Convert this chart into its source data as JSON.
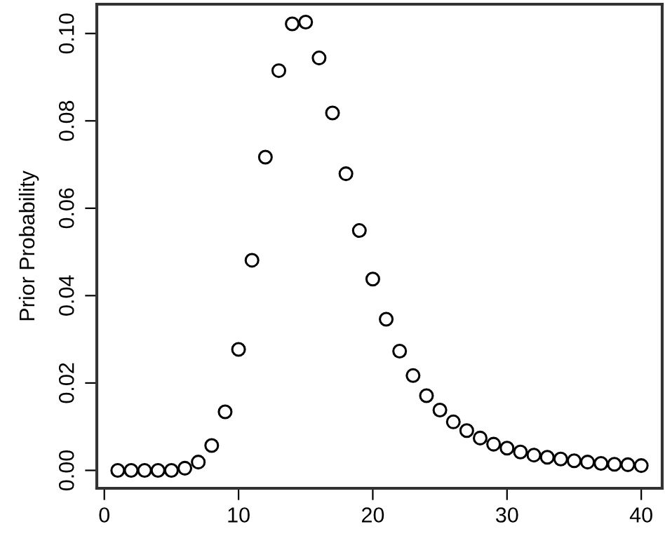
{
  "chart_data": {
    "type": "scatter",
    "ylabel": "Prior Probability",
    "x": [
      1,
      2,
      3,
      4,
      5,
      6,
      7,
      8,
      9,
      10,
      11,
      12,
      13,
      14,
      15,
      16,
      17,
      18,
      19,
      20,
      21,
      22,
      23,
      24,
      25,
      26,
      27,
      28,
      29,
      30,
      31,
      32,
      33,
      34,
      35,
      36,
      37,
      38,
      39,
      40
    ],
    "series": [
      {
        "color": "#000000",
        "values": [
          0,
          0,
          0,
          0,
          0,
          0.0005,
          0.0019,
          0.0057,
          0.0134,
          0.0277,
          0.0481,
          0.0717,
          0.0915,
          0.1022,
          0.1026,
          0.0944,
          0.0818,
          0.0679,
          0.0549,
          0.0438,
          0.0346,
          0.0273,
          0.0217,
          0.0171,
          0.0138,
          0.0111,
          0.0091,
          0.0074,
          0.006,
          0.0051,
          0.0042,
          0.0035,
          0.003,
          0.0026,
          0.0022,
          0.0019,
          0.0016,
          0.0014,
          0.0013,
          0.0011
        ]
      }
    ],
    "marker": "circle",
    "grid": false,
    "xlim": [
      -0.56,
      41.56
    ],
    "xticks": [
      0,
      10,
      20,
      30,
      40
    ],
    "ylim": [
      -0.0041,
      0.1067
    ],
    "yticks": [
      {
        "value": 0,
        "label": "0.00"
      },
      {
        "value": 0.02,
        "label": "0.02"
      },
      {
        "value": 0.04,
        "label": "0.04"
      },
      {
        "value": 0.06,
        "label": "0.06"
      },
      {
        "value": 0.08,
        "label": "0.08"
      },
      {
        "value": 0.1,
        "label": "0.10"
      }
    ]
  }
}
